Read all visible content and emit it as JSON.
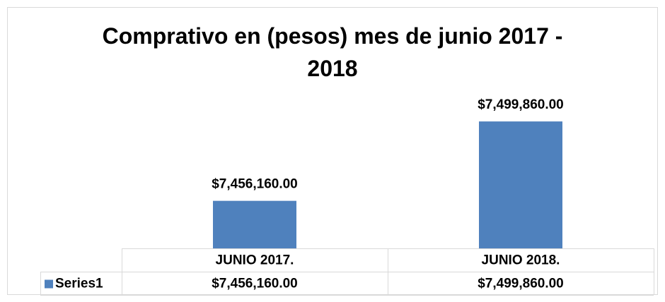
{
  "chart_data": {
    "type": "bar",
    "title": "Comprativo en (pesos) mes de  junio 2017 - 2018",
    "categories": [
      "JUNIO 2017.",
      "JUNIO 2018."
    ],
    "series": [
      {
        "name": "Series1",
        "color": "#4f81bd",
        "values": [
          7456160,
          7499860
        ],
        "value_labels": [
          "$7,456,160.00",
          "$7,499,860.00"
        ]
      }
    ],
    "ylim": [
      7430000,
      7510000
    ]
  }
}
